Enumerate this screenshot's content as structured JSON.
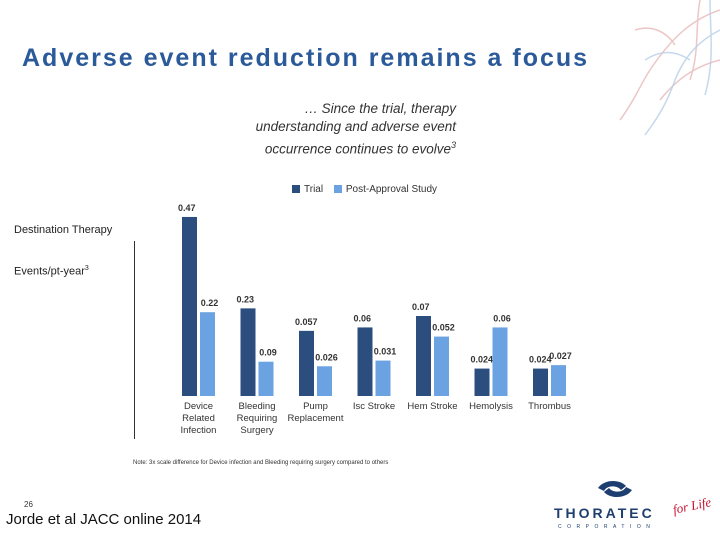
{
  "title": "Adverse event reduction remains a focus",
  "subtitle": {
    "line1": "… Since the trial, therapy",
    "line2": "understanding and adverse event",
    "line3": "occurrence continues to evolve",
    "sup": "3"
  },
  "left_labels": {
    "therapy": "Destination Therapy",
    "metric": "Events/pt-year",
    "metric_sup": "3"
  },
  "note": "Note: 3x scale difference for Device infection and Bleeding requiring surgery compared to others",
  "page_number": "26",
  "footer": "Jorde et al JACC online 2014",
  "logo": {
    "name": "THORATEC",
    "sub": "CORPORATION",
    "tagline": "for Life"
  },
  "colors": {
    "trial": "#2b4e7e",
    "post": "#6aa2e2",
    "title": "#2a5a9a",
    "logo": "#1d3e6e",
    "tagline": "#c8102e"
  },
  "chart_data": {
    "type": "bar",
    "categories": [
      [
        "Device",
        "Related",
        "Infection"
      ],
      [
        "Bleeding",
        "Requiring",
        "Surgery"
      ],
      [
        "Pump",
        "Replacement"
      ],
      [
        "Isc Stroke"
      ],
      [
        "Hem Stroke"
      ],
      [
        "Hemolysis"
      ],
      [
        "Thrombus"
      ]
    ],
    "series": [
      {
        "name": "Trial",
        "values": [
          0.47,
          0.23,
          0.057,
          0.06,
          0.07,
          0.024,
          0.024
        ],
        "labels": [
          "0.47",
          "0.23",
          "0.057",
          "0.06",
          "0.07",
          "0.024",
          "0.024"
        ]
      },
      {
        "name": "Post-Approval Study",
        "values": [
          0.22,
          0.09,
          0.026,
          0.031,
          0.052,
          0.06,
          0.027
        ],
        "labels": [
          "0.22",
          "0.09",
          "0.026",
          "0.031",
          "0.052",
          "0.06",
          "0.027"
        ]
      }
    ],
    "scale_factor": [
      3,
      3,
      1,
      1,
      1,
      1,
      1
    ],
    "ylabel": "Events/pt-year",
    "legend_position": "top-right"
  }
}
